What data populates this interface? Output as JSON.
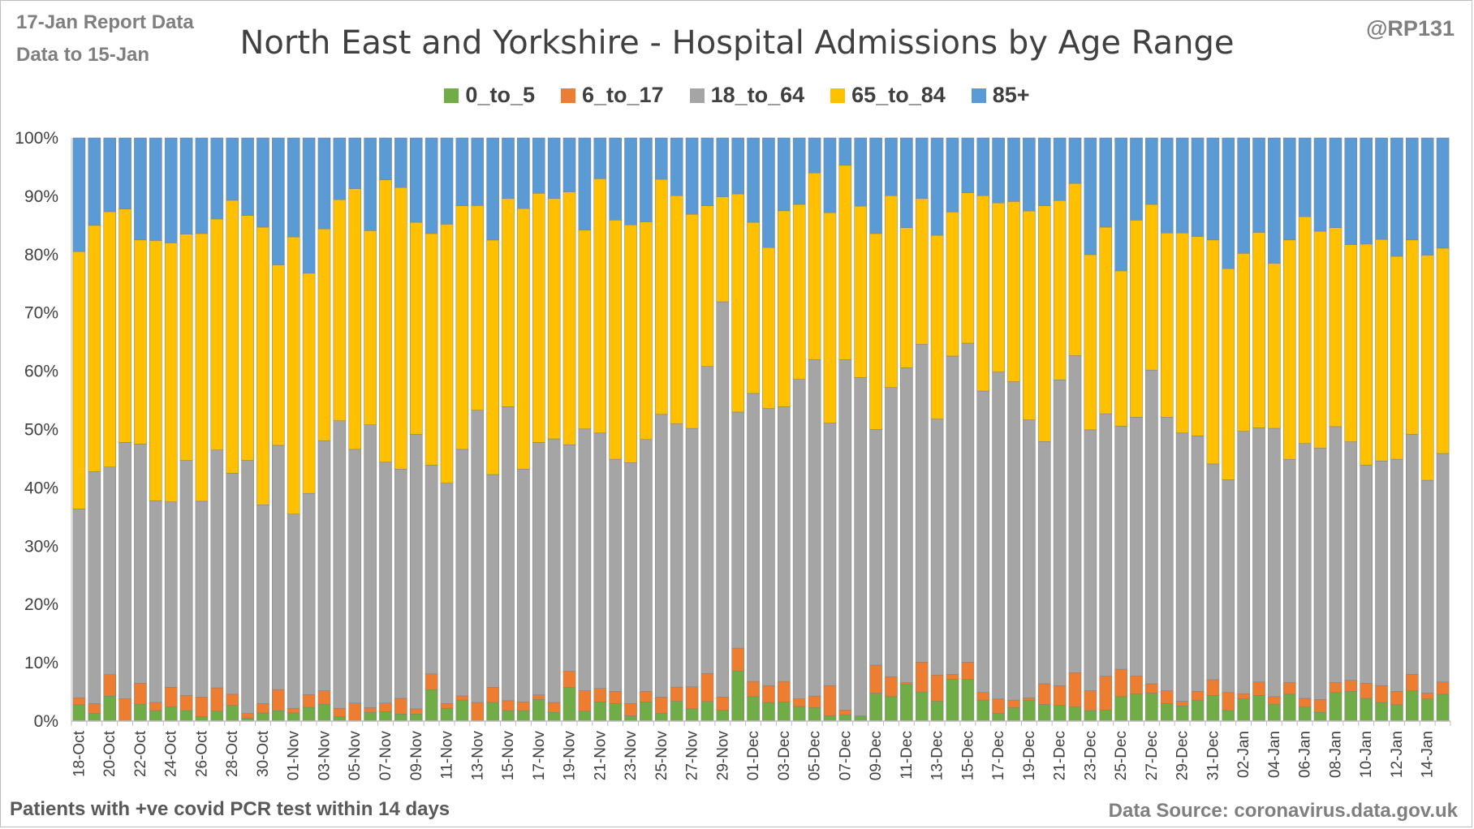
{
  "header": {
    "report_line1": "17-Jan Report Data",
    "report_line2": "Data to 15-Jan",
    "handle": "@RP131"
  },
  "footer": {
    "note": "Patients with  +ve covid PCR test within 14 days",
    "source": "Data Source: coronavirus.data.gov.uk"
  },
  "chart_data": {
    "type": "bar",
    "stacked": "percent",
    "title": "North East and Yorkshire - Hospital Admissions by Age Range",
    "xlabel": "",
    "ylabel": "",
    "ylim": [
      0,
      100
    ],
    "yticks": [
      "0%",
      "10%",
      "20%",
      "30%",
      "40%",
      "50%",
      "60%",
      "70%",
      "80%",
      "90%",
      "100%"
    ],
    "legend_position": "top",
    "grid": false,
    "categories": [
      "18-Oct",
      "19-Oct",
      "20-Oct",
      "21-Oct",
      "22-Oct",
      "23-Oct",
      "24-Oct",
      "25-Oct",
      "26-Oct",
      "27-Oct",
      "28-Oct",
      "29-Oct",
      "30-Oct",
      "31-Oct",
      "01-Nov",
      "02-Nov",
      "03-Nov",
      "04-Nov",
      "05-Nov",
      "06-Nov",
      "07-Nov",
      "08-Nov",
      "09-Nov",
      "10-Nov",
      "11-Nov",
      "12-Nov",
      "13-Nov",
      "14-Nov",
      "15-Nov",
      "16-Nov",
      "17-Nov",
      "18-Nov",
      "19-Nov",
      "20-Nov",
      "21-Nov",
      "22-Nov",
      "23-Nov",
      "24-Nov",
      "25-Nov",
      "26-Nov",
      "27-Nov",
      "28-Nov",
      "29-Nov",
      "30-Nov",
      "01-Dec",
      "02-Dec",
      "03-Dec",
      "04-Dec",
      "05-Dec",
      "06-Dec",
      "07-Dec",
      "08-Dec",
      "09-Dec",
      "10-Dec",
      "11-Dec",
      "12-Dec",
      "13-Dec",
      "14-Dec",
      "15-Dec",
      "16-Dec",
      "17-Dec",
      "18-Dec",
      "19-Dec",
      "20-Dec",
      "21-Dec",
      "22-Dec",
      "23-Dec",
      "24-Dec",
      "25-Dec",
      "26-Dec",
      "27-Dec",
      "28-Dec",
      "29-Dec",
      "30-Dec",
      "31-Dec",
      "01-Jan",
      "02-Jan",
      "03-Jan",
      "04-Jan",
      "05-Jan",
      "06-Jan",
      "07-Jan",
      "08-Jan",
      "09-Jan",
      "10-Jan",
      "11-Jan",
      "12-Jan",
      "13-Jan",
      "14-Jan",
      "15-Jan"
    ],
    "x_tick_labels": [
      "18-Oct",
      "20-Oct",
      "22-Oct",
      "24-Oct",
      "26-Oct",
      "28-Oct",
      "30-Oct",
      "01-Nov",
      "03-Nov",
      "05-Nov",
      "07-Nov",
      "09-Nov",
      "11-Nov",
      "13-Nov",
      "15-Nov",
      "17-Nov",
      "19-Nov",
      "21-Nov",
      "23-Nov",
      "25-Nov",
      "27-Nov",
      "29-Nov",
      "01-Dec",
      "03-Dec",
      "05-Dec",
      "07-Dec",
      "09-Dec",
      "11-Dec",
      "13-Dec",
      "15-Dec",
      "17-Dec",
      "19-Dec",
      "21-Dec",
      "23-Dec",
      "25-Dec",
      "27-Dec",
      "29-Dec",
      "31-Dec",
      "02-Jan",
      "04-Jan",
      "06-Jan",
      "08-Jan",
      "10-Jan",
      "12-Jan",
      "14-Jan"
    ],
    "series": [
      {
        "name": "0_to_5",
        "color": "#70ad47",
        "values": [
          2.8,
          1.3,
          4.2,
          0,
          2.9,
          1.8,
          2.4,
          1.8,
          0.8,
          1.7,
          2.7,
          0.5,
          1.4,
          1.6,
          1.4,
          2.5,
          2.9,
          0.8,
          0,
          1.5,
          1.6,
          1.2,
          1.2,
          5.4,
          2.2,
          3.5,
          0,
          3.1,
          1.8,
          1.8,
          3.7,
          1.5,
          5.5,
          1.7,
          3.3,
          3.3,
          0.9,
          3.3,
          1.3,
          3.5,
          2.2,
          3.3,
          1.9,
          8.6,
          4.2,
          3.2,
          3.3,
          2.5,
          2.3,
          0.9,
          1.1,
          0.9,
          4.8,
          4.2,
          6.3,
          5,
          3.4,
          7.2,
          7.2,
          3.6,
          1.3,
          2.3,
          3.7,
          2.9,
          2.7,
          2.4,
          1.8,
          1.9,
          4.2,
          4.7,
          4.8,
          3,
          2.6,
          3.6,
          4.4,
          1.8,
          3.8,
          4.4,
          2.9,
          4.6,
          2.4,
          1.5,
          4.9,
          5.1,
          3.9,
          3.2,
          2.8,
          5.2,
          3.8,
          4.6
        ]
      },
      {
        "name": "6_to_17",
        "color": "#ed7d31",
        "values": [
          1.2,
          1.7,
          3.6,
          3.8,
          3.6,
          1.4,
          3.4,
          2.6,
          3.3,
          4,
          1.9,
          0.8,
          1.6,
          3.3,
          0.8,
          2.3,
          2.3,
          1.4,
          3.1,
          0.8,
          1.5,
          2.7,
          0.9,
          2.7,
          0.8,
          0.7,
          3.2,
          2.5,
          1.7,
          1.5,
          0.8,
          1.7,
          2.6,
          3.5,
          2.3,
          2.3,
          2.1,
          1.8,
          2.8,
          2.5,
          3.9,
          4.7,
          2.2,
          3.9,
          2.6,
          2.9,
          3.5,
          1.3,
          2,
          5.2,
          0.8,
          0,
          4.8,
          3.4,
          0.3,
          5.1,
          4.5,
          0.8,
          2.9,
          1.3,
          2.5,
          1.3,
          0.4,
          3.6,
          3.4,
          5.9,
          3.4,
          5.8,
          4.7,
          3,
          1.6,
          2.2,
          0.8,
          1.5,
          2.7,
          3.1,
          0.9,
          2.3,
          1.3,
          2,
          1.5,
          2.2,
          1.7,
          1.9,
          2.6,
          2.9,
          2.3,
          2.8,
          1,
          2.1
        ]
      },
      {
        "name": "18_to_64",
        "color": "#a5a5a5",
        "values": [
          32.4,
          39.8,
          34.9,
          44,
          41,
          34.4,
          31.8,
          40.3,
          33.6,
          40.8,
          37.9,
          43.4,
          34.1,
          37.9,
          33.3,
          36.6,
          42.9,
          49.3,
          43.5,
          48.5,
          41.3,
          39.3,
          47.1,
          35.8,
          37.8,
          41,
          50.1,
          35.2,
          50.4,
          39.9,
          43.3,
          45.2,
          36.9,
          44.9,
          43.8,
          43.8,
          41.3,
          43.2,
          48.5,
          46.5,
          46,
          51.6,
          67.8,
          40.5,
          49.4,
          47.5,
          47.1,
          54.8,
          57.7,
          45,
          60.1,
          58,
          40.4,
          49.6,
          54,
          54.5,
          43.9,
          54.6,
          54.7,
          51.7,
          56.3,
          54.6,
          49.1,
          42.1,
          52.7,
          54.3,
          44.7,
          45,
          41.7,
          44.4,
          53.8,
          46.9,
          46,
          43.8,
          37,
          36.5,
          45,
          43.6,
          46,
          38.3,
          43.7,
          43.1,
          43.9,
          40.9,
          37.4,
          38.5,
          39.8,
          41.2,
          36.5,
          39.2
        ]
      },
      {
        "name": "65_to_84",
        "color": "#ffc000",
        "values": [
          44.1,
          42.2,
          42.9,
          40,
          35,
          44.4,
          44.4,
          38.8,
          45.9,
          39.6,
          46.8,
          42,
          47.6,
          28,
          47.5,
          40,
          36.3,
          37.9,
          44.7,
          33.3,
          48.4,
          48.3,
          36.3,
          39.7,
          44.4,
          40.5,
          35.1,
          38.8,
          35.7,
          44.7,
          42.7,
          41.2,
          41.2,
          34.1,
          43.6,
          45.1,
          40.8,
          37.3,
          40.3,
          40.3,
          38.1,
          27,
          18,
          37.4,
          29.3,
          27.6,
          33.6,
          30,
          32,
          36.1,
          33.3,
          29.4,
          33.6,
          32.9,
          24,
          25,
          31.5,
          24.7,
          25.8,
          33.5,
          29.1,
          30.9,
          36.9,
          41,
          30.9,
          29.5,
          30,
          32,
          26.6,
          33.8,
          28.4,
          31.6,
          34.3,
          34.2,
          38.4,
          36.2,
          30.5,
          33.5,
          28.3,
          37.6,
          38.9,
          37.2,
          34.1,
          33.8,
          37.9,
          38,
          34.8,
          33.3,
          38.6,
          35.2
        ]
      },
      {
        "name": "85+",
        "color": "#5b9bd5",
        "values": [
          19.5,
          15,
          12.4,
          12.2,
          17.5,
          17.5,
          18,
          16.5,
          16.4,
          13.9,
          10.7,
          13.3,
          15.3,
          19.7,
          17,
          24.6,
          15.6,
          10.6,
          8.7,
          15.9,
          7.2,
          8.5,
          14.5,
          16.4,
          14.8,
          11.3,
          11.6,
          16.9,
          10.4,
          12.1,
          9.5,
          10.4,
          8.8,
          15.8,
          7,
          15.5,
          14.9,
          14.4,
          7.1,
          10.2,
          13.6,
          11.4,
          10.1,
          9.6,
          14.5,
          18.8,
          12.5,
          11.4,
          6,
          12.8,
          4.7,
          11.7,
          16.4,
          9.9,
          15.4,
          10.4,
          16.7,
          12.7,
          9.4,
          9.9,
          11.2,
          10.9,
          12.9,
          11.8,
          10.8,
          7.8,
          20,
          15.3,
          22.8,
          14.1,
          11.4,
          16.3,
          16.3,
          16.9,
          17.5,
          22.4,
          19.8,
          16.2,
          21.5,
          17.5,
          13.5,
          16,
          15.4,
          18.3,
          18.2,
          17.4,
          20.3,
          17.5,
          20.1,
          18.9
        ]
      }
    ]
  }
}
